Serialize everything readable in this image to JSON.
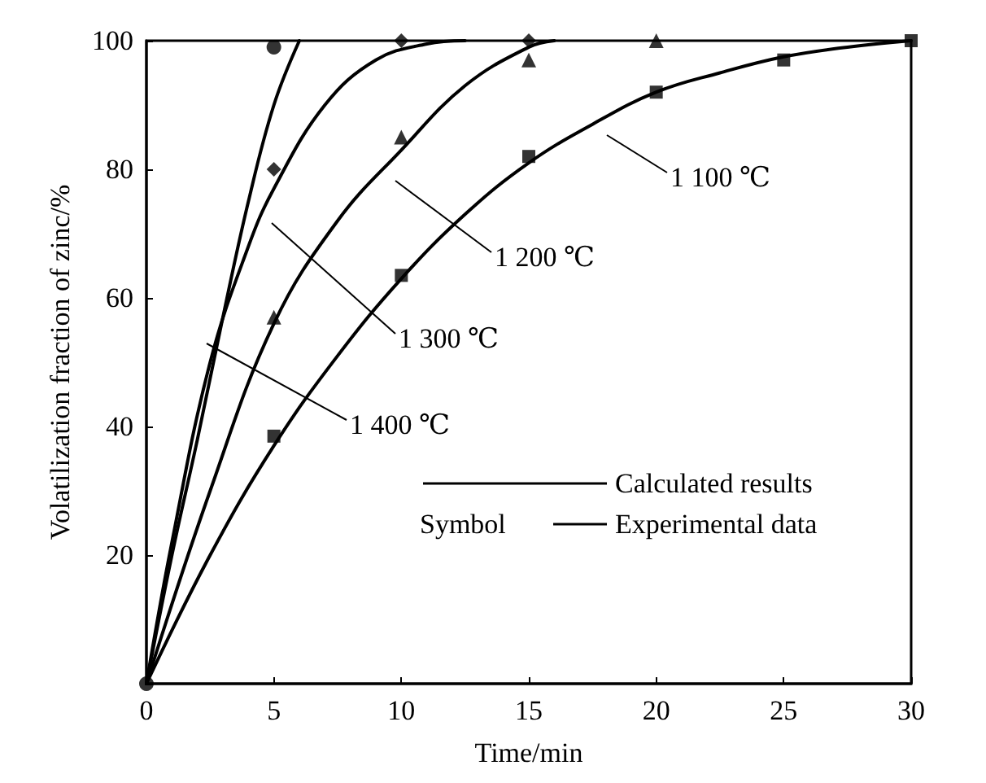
{
  "chart_data": {
    "type": "line",
    "xlabel": "Time/min",
    "ylabel": "Volatilization fraction of zinc/%",
    "xlim": [
      0,
      30
    ],
    "xticks": [
      0,
      5,
      10,
      15,
      20,
      25,
      30
    ],
    "ylim": [
      0,
      100
    ],
    "yticks": [
      {
        "value": 0,
        "label": null
      },
      20,
      40,
      60,
      80,
      100
    ],
    "grid": false,
    "series": [
      {
        "color": "#000000",
        "line_style": "solid",
        "marker": "none",
        "x": [
          0,
          1,
          2,
          3,
          4,
          5,
          6
        ],
        "values": [
          0,
          20,
          38,
          57,
          75,
          90,
          100
        ]
      },
      {
        "color": "#000000",
        "line_style": "solid",
        "marker": "none",
        "x": [
          0,
          1,
          2.5,
          4,
          5,
          7,
          9,
          11,
          12.5
        ],
        "values": [
          0,
          22,
          50,
          68,
          77,
          90,
          97,
          99.5,
          100
        ]
      },
      {
        "color": "#000000",
        "line_style": "solid",
        "marker": "none",
        "x": [
          0,
          2.5,
          5,
          7.5,
          10,
          12.5,
          15,
          16
        ],
        "values": [
          0,
          30,
          56,
          72,
          83,
          93,
          99,
          100
        ]
      },
      {
        "color": "#000000",
        "line_style": "solid",
        "marker": "none",
        "x": [
          0,
          2.5,
          5,
          7.5,
          10,
          12.5,
          15,
          17.5,
          20,
          22.5,
          25,
          27.5,
          30
        ],
        "values": [
          0,
          20,
          37,
          51,
          63,
          73,
          81,
          87,
          92,
          95,
          97.5,
          99,
          100
        ]
      },
      {
        "type": "scatter",
        "color": "#000000",
        "marker": "circle",
        "x": [
          0,
          5
        ],
        "values": [
          0,
          99
        ]
      },
      {
        "type": "scatter",
        "color": "#000000",
        "marker": "diamond",
        "x": [
          5,
          10,
          15
        ],
        "values": [
          80,
          100,
          100
        ]
      },
      {
        "type": "scatter",
        "color": "#000000",
        "marker": "triangle",
        "x": [
          5,
          10,
          15,
          20
        ],
        "values": [
          57,
          85,
          97,
          100
        ]
      },
      {
        "type": "scatter",
        "color": "#000000",
        "marker": "square",
        "x": [
          5,
          10,
          15,
          20,
          25,
          30
        ],
        "values": [
          38.5,
          63.5,
          82,
          92,
          97,
          100
        ]
      }
    ],
    "annotations": [
      "1 400 ℃",
      "1 300 ℃",
      "1 200 ℃",
      "1 100 ℃",
      "Calculated results",
      "Symbol",
      "Experimental data"
    ]
  }
}
